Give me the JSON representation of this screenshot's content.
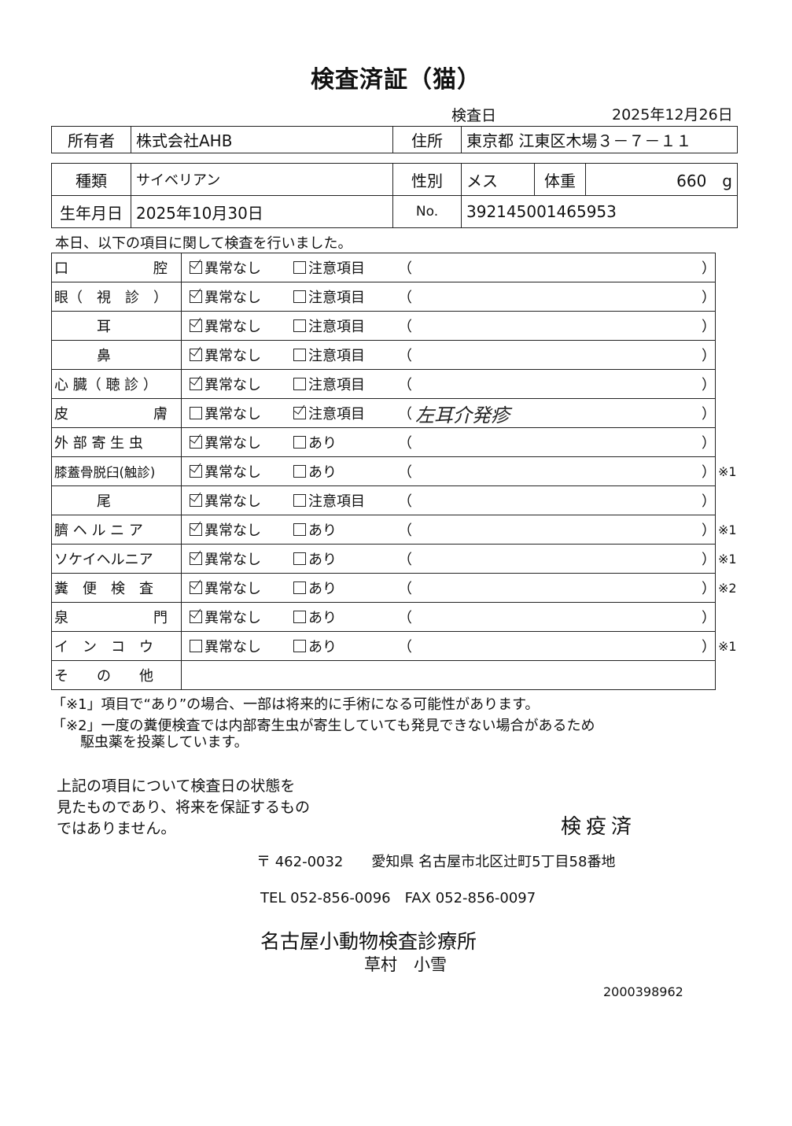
{
  "title": "検査済証（猫）",
  "exam_date_label": "検査日",
  "exam_date": "2025年12月26日",
  "owner": {
    "label": "所有者",
    "value": "株式会社AHB",
    "address_label": "住所",
    "address": "東京都 江東区木場３－７－１１"
  },
  "pet": {
    "breed_label": "種類",
    "breed": "サイベリアン",
    "sex_label": "性別",
    "sex": "メス",
    "weight_label": "体重",
    "weight": "660　g",
    "birth_label": "生年月日",
    "birth": "2025年10月30日",
    "no_label": "No.",
    "no": "392145001465953"
  },
  "intro": "本日、以下の項目に関して検査を行いました。",
  "checks": [
    {
      "label": "口　　　　　　腔",
      "ok_label": "異常なし",
      "ok": true,
      "alt_label": "注意項目",
      "alt": false,
      "note": "",
      "mark": ""
    },
    {
      "label": "眼（　視　診　）",
      "ok_label": "異常なし",
      "ok": true,
      "alt_label": "注意項目",
      "alt": false,
      "note": "",
      "mark": ""
    },
    {
      "label": "　　　耳",
      "ok_label": "異常なし",
      "ok": true,
      "alt_label": "注意項目",
      "alt": false,
      "note": "",
      "mark": ""
    },
    {
      "label": "　　　鼻",
      "ok_label": "異常なし",
      "ok": true,
      "alt_label": "注意項目",
      "alt": false,
      "note": "",
      "mark": ""
    },
    {
      "label": "心 臓（ 聴 診 ）",
      "ok_label": "異常なし",
      "ok": true,
      "alt_label": "注意項目",
      "alt": false,
      "note": "",
      "mark": ""
    },
    {
      "label": "皮　　　　　　膚",
      "ok_label": "異常なし",
      "ok": false,
      "alt_label": "注意項目",
      "alt": true,
      "note": "左耳介発疹",
      "mark": ""
    },
    {
      "label": "外 部 寄 生 虫",
      "ok_label": "異常なし",
      "ok": true,
      "alt_label": "あり",
      "alt": false,
      "note": "",
      "mark": ""
    },
    {
      "label": "膝蓋骨脱臼(触診)",
      "ok_label": "異常なし",
      "ok": true,
      "alt_label": "あり",
      "alt": false,
      "note": "",
      "mark": "※1"
    },
    {
      "label": "　　　尾",
      "ok_label": "異常なし",
      "ok": true,
      "alt_label": "注意項目",
      "alt": false,
      "note": "",
      "mark": ""
    },
    {
      "label": "臍 ヘ ル ニ ア",
      "ok_label": "異常なし",
      "ok": true,
      "alt_label": "あり",
      "alt": false,
      "note": "",
      "mark": "※1"
    },
    {
      "label": "ソケイヘルニア",
      "ok_label": "異常なし",
      "ok": true,
      "alt_label": "あり",
      "alt": false,
      "note": "",
      "mark": "※1"
    },
    {
      "label": "糞　便　検　査",
      "ok_label": "異常なし",
      "ok": true,
      "alt_label": "あり",
      "alt": false,
      "note": "",
      "mark": "※2"
    },
    {
      "label": "泉　　　　　　門",
      "ok_label": "異常なし",
      "ok": true,
      "alt_label": "あり",
      "alt": false,
      "note": "",
      "mark": ""
    },
    {
      "label": "イ　ン　コ　ウ",
      "ok_label": "異常なし",
      "ok": false,
      "alt_label": "あり",
      "alt": false,
      "note": "",
      "mark": "※1"
    },
    {
      "label": "そ　　の　　他"
    }
  ],
  "paren_open": "（",
  "paren_close": "）",
  "footnotes": [
    "「※1」項目で“あり”の場合、一部は将来的に手術になる可能性があります。",
    "「※2」一度の糞便検査では内部寄生虫が寄生していても発見できない場合があるため",
    "　　駆虫薬を投薬しています。"
  ],
  "disclaimer": [
    "上記の項目について検査日の状態を",
    "見たものであり、将来を保証するもの",
    "ではありません。"
  ],
  "stamp": "検疫済",
  "address": "〒 462-0032　　愛知県 名古屋市北区辻町5丁目58番地",
  "tel": "TEL 052-856-0096　FAX 052-856-0097",
  "clinic": "名古屋小動物検査診療所",
  "person": "草村　小雪",
  "code": "2000398962"
}
